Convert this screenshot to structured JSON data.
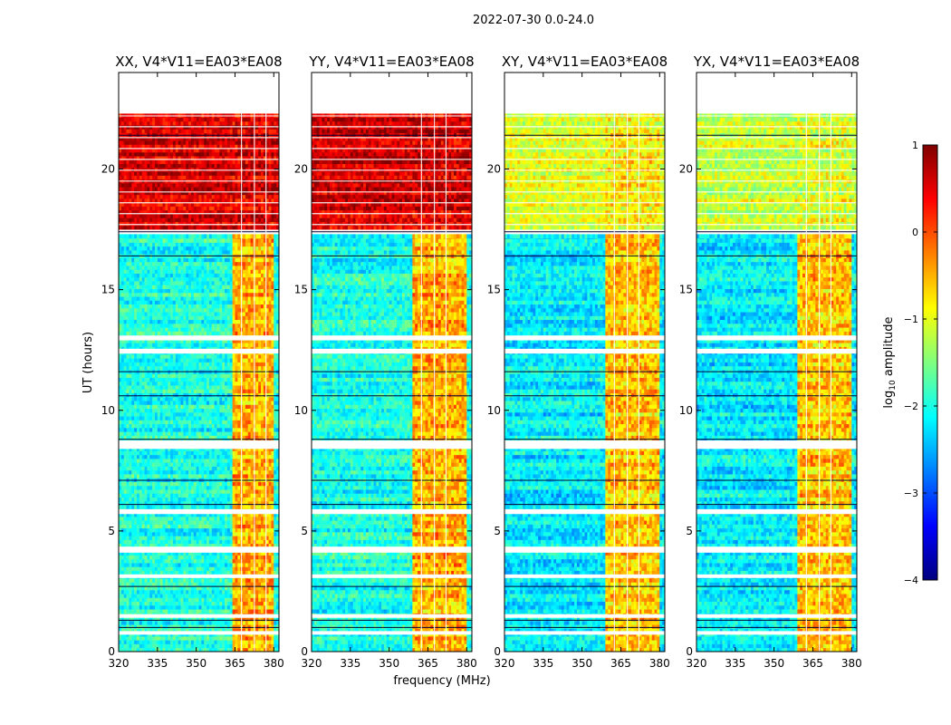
{
  "figure": {
    "suptitle": "2022-07-30 0.0-24.0",
    "xlabel": "frequency (MHz)",
    "ylabel": "UT (hours)"
  },
  "colorbar": {
    "label_main": "log",
    "label_sub": "10",
    "label_tail": " amplitude",
    "ticks": [
      "1",
      "0",
      "−1",
      "−2",
      "−3",
      "−4"
    ],
    "range": [
      -4,
      1
    ],
    "colormap": "jet",
    "colors": [
      "#00007f",
      "#0000ff",
      "#007fff",
      "#00ffff",
      "#7fff7f",
      "#ffff00",
      "#ff7f00",
      "#ff0000",
      "#7f0000"
    ]
  },
  "chart_data": [
    {
      "type": "heatmap",
      "title": "XX, V4*V11=EA03*EA08",
      "xlim": [
        320,
        382
      ],
      "ylim": [
        0,
        24
      ],
      "xticks": [
        "320",
        "335",
        "350",
        "365",
        "380"
      ],
      "yticks": [
        "0",
        "5",
        "10",
        "15",
        "20"
      ],
      "grid": false,
      "segments": [
        {
          "ut": [
            17.5,
            22.3
          ],
          "bulk_log10": 0.6,
          "band_log10": 0.6
        },
        {
          "ut": [
            0.0,
            17.3
          ],
          "bulk_log10": -2.0,
          "band_log10": -0.5
        }
      ],
      "rfi_band_mhz": [
        364,
        380
      ]
    },
    {
      "type": "heatmap",
      "title": "YY, V4*V11=EA03*EA08",
      "xlim": [
        320,
        382
      ],
      "ylim": [
        0,
        24
      ],
      "xticks": [
        "320",
        "335",
        "350",
        "365",
        "380"
      ],
      "yticks": [
        "0",
        "5",
        "10",
        "15",
        "20"
      ],
      "grid": false,
      "segments": [
        {
          "ut": [
            17.5,
            22.3
          ],
          "bulk_log10": 0.6,
          "band_log10": 0.6
        },
        {
          "ut": [
            0.0,
            17.3
          ],
          "bulk_log10": -2.0,
          "band_log10": -0.5
        }
      ],
      "rfi_band_mhz": [
        359,
        380
      ]
    },
    {
      "type": "heatmap",
      "title": "XY, V4*V11=EA03*EA08",
      "xlim": [
        320,
        382
      ],
      "ylim": [
        0,
        24
      ],
      "xticks": [
        "320",
        "335",
        "350",
        "365",
        "380"
      ],
      "yticks": [
        "0",
        "5",
        "10",
        "15",
        "20"
      ],
      "grid": false,
      "segments": [
        {
          "ut": [
            17.5,
            22.3
          ],
          "bulk_log10": -1.0,
          "band_log10": -0.8
        },
        {
          "ut": [
            0.0,
            17.3
          ],
          "bulk_log10": -2.2,
          "band_log10": -0.6
        }
      ],
      "rfi_band_mhz": [
        359,
        380
      ]
    },
    {
      "type": "heatmap",
      "title": "YX, V4*V11=EA03*EA08",
      "xlim": [
        320,
        382
      ],
      "ylim": [
        0,
        24
      ],
      "xticks": [
        "320",
        "335",
        "350",
        "365",
        "380"
      ],
      "yticks": [
        "0",
        "5",
        "10",
        "15",
        "20"
      ],
      "grid": false,
      "segments": [
        {
          "ut": [
            17.5,
            22.3
          ],
          "bulk_log10": -1.1,
          "band_log10": -1.0
        },
        {
          "ut": [
            0.0,
            17.3
          ],
          "bulk_log10": -2.2,
          "band_log10": -0.6
        }
      ],
      "rfi_band_mhz": [
        359,
        380
      ]
    }
  ]
}
